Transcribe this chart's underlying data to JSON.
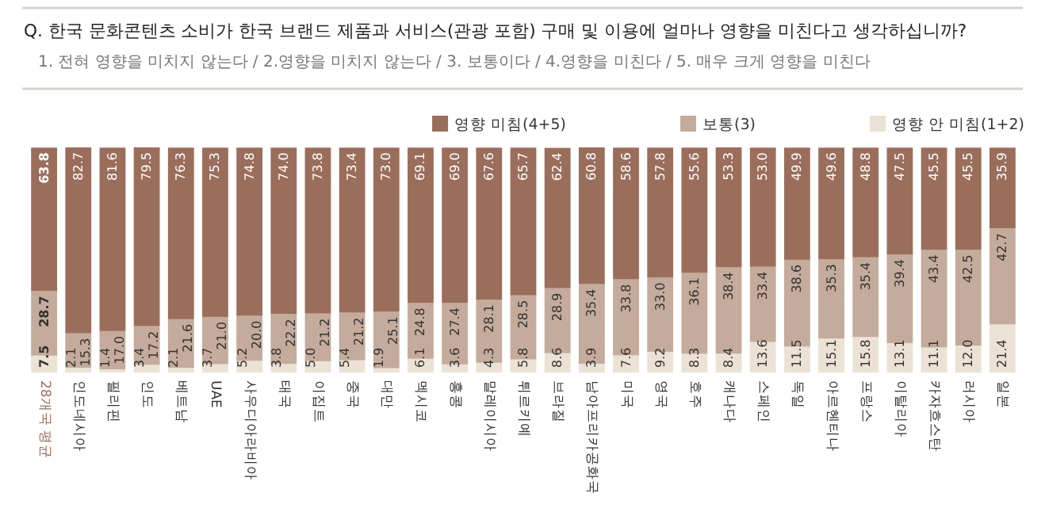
{
  "chart_data": {
    "type": "bar",
    "stacked": true,
    "legend": "top right",
    "title": "Q. 한국 문화콘텐츠 소비가 한국 브랜드 제품과 서비스(관광 포함) 구매 및 이용에 얼마나 영향을 미친다고 생각하십니까?",
    "subtitle": "1. 전혀 영향을 미치지 않는다 / 2.영향을 미치지 않는다 / 3. 보통이다 / 4.영향을 미친다 / 5. 매우 크게 영향을 미친다",
    "categories": [
      "28개국 평균",
      "인도네시아",
      "필리핀",
      "인도",
      "베트남",
      "UAE",
      "사우디아라비아",
      "태국",
      "이집트",
      "중국",
      "대만",
      "멕시코",
      "홍콩",
      "말레이시아",
      "튀르키예",
      "브라질",
      "남아프리카공화국",
      "미국",
      "영국",
      "호주",
      "캐나다",
      "스페인",
      "독일",
      "아르헨티나",
      "프랑스",
      "이탈리아",
      "카자흐스탄",
      "러시아",
      "일본"
    ],
    "series": [
      {
        "name": "영향 안 미침(1+2)",
        "color": "#ebe2d5",
        "values": [
          7.5,
          2.1,
          1.4,
          3.4,
          2.1,
          3.7,
          5.2,
          3.8,
          5.0,
          5.4,
          1.9,
          6.1,
          3.6,
          4.3,
          5.8,
          8.6,
          3.9,
          7.6,
          9.2,
          8.3,
          8.4,
          13.6,
          11.5,
          15.1,
          15.8,
          13.1,
          11.1,
          12.0,
          21.4
        ],
        "value_labels": [
          "7.5",
          "2.1",
          "1.4",
          "3.4",
          "2.1",
          "3.7",
          "5.2",
          "3.8",
          "5.0",
          "5.4",
          "1.9",
          "6.1",
          "3.6",
          "4.3",
          "5.8",
          "8.6",
          "3.9",
          "7.6",
          "9.2",
          "8.3",
          "8.4",
          "13.6",
          "11.5",
          "15.1",
          "15.8",
          "13.1",
          "11.1",
          "12.0",
          "21.4"
        ]
      },
      {
        "name": "보통(3)",
        "color": "#c4ab9b",
        "values": [
          28.7,
          15.3,
          17.0,
          17.2,
          21.6,
          21.0,
          20.0,
          22.2,
          21.2,
          21.2,
          25.1,
          24.8,
          27.4,
          28.1,
          28.5,
          28.9,
          35.4,
          33.8,
          33.0,
          36.1,
          38.4,
          33.4,
          38.6,
          35.3,
          35.4,
          39.4,
          43.4,
          42.5,
          42.7
        ],
        "value_labels": [
          "28.7",
          "15.3",
          "17.0",
          "17.2",
          "21.6",
          "21.0",
          "20.0",
          "22.2",
          "21.2",
          "21.2",
          "25.1",
          "24.8",
          "27.4",
          "28.1",
          "28.5",
          "28.9",
          "35.4",
          "33.8",
          "33.0",
          "36.1",
          "38.4",
          "33.4",
          "38.6",
          "35.3",
          "35.4",
          "39.4",
          "43.4",
          "42.5",
          "42.7"
        ]
      },
      {
        "name": "영향 미침(4+5)",
        "color": "#9b6e5c",
        "values": [
          63.8,
          82.7,
          81.6,
          79.5,
          76.3,
          75.3,
          74.8,
          74.0,
          73.8,
          73.4,
          73.0,
          69.1,
          69.0,
          67.6,
          65.7,
          62.4,
          60.8,
          58.6,
          57.8,
          55.6,
          53.3,
          53.0,
          49.9,
          49.6,
          48.8,
          47.5,
          45.5,
          45.5,
          35.9
        ],
        "value_labels": [
          "63.8",
          "82.7",
          "81.6",
          "79.5",
          "76.3",
          "75.3",
          "74.8",
          "74.0",
          "73.8",
          "73.4",
          "73.0",
          "69.1",
          "69.0",
          "67.6",
          "65.7",
          "62.4",
          "60.8",
          "58.6",
          "57.8",
          "55.6",
          "53.3",
          "53.0",
          "49.9",
          "49.6",
          "48.8",
          "47.5",
          "45.5",
          "45.5",
          "35.9"
        ]
      }
    ]
  }
}
